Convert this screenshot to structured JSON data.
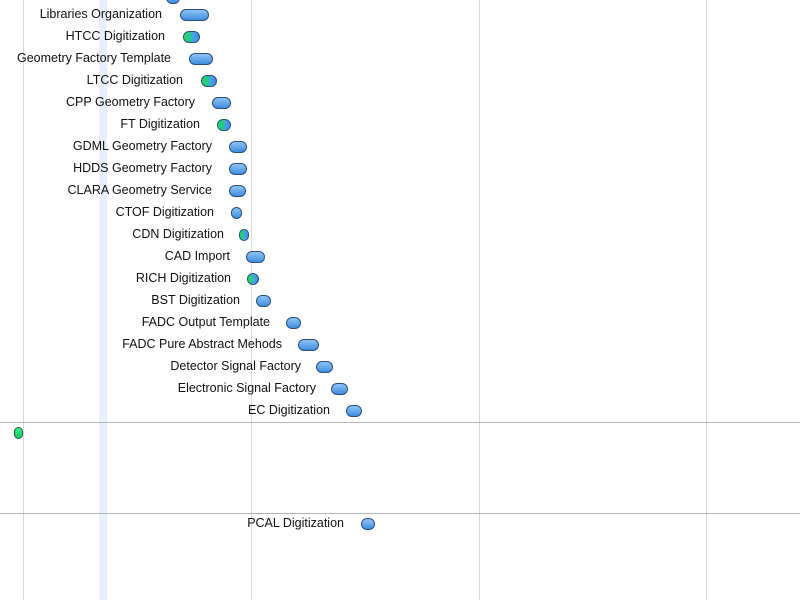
{
  "tasks": [
    {
      "id": "libraries-organization",
      "label": "Libraries Organization"
    },
    {
      "id": "htcc-digitization",
      "label": "HTCC Digitization"
    },
    {
      "id": "geometry-factory-template",
      "label": "Geometry Factory Template"
    },
    {
      "id": "ltcc-digitization",
      "label": "LTCC Digitization"
    },
    {
      "id": "cpp-geometry-factory",
      "label": "CPP Geometry Factory"
    },
    {
      "id": "ft-digitization",
      "label": "FT Digitization"
    },
    {
      "id": "gdml-geometry-factory",
      "label": "GDML Geometry Factory"
    },
    {
      "id": "hdds-geometry-factory",
      "label": "HDDS Geometry Factory"
    },
    {
      "id": "clara-geometry-service",
      "label": "CLARA Geometry Service"
    },
    {
      "id": "ctof-digitization",
      "label": "CTOF Digitization"
    },
    {
      "id": "cdn-digitization",
      "label": "CDN Digitization"
    },
    {
      "id": "cad-import",
      "label": "CAD Import"
    },
    {
      "id": "rich-digitization",
      "label": "RICH Digitization"
    },
    {
      "id": "bst-digitization",
      "label": "BST Digitization"
    },
    {
      "id": "fadc-output-template",
      "label": "FADC Output Template"
    },
    {
      "id": "fadc-pure-abstract-mehods",
      "label": "FADC Pure Abstract Mehods"
    },
    {
      "id": "detector-signal-factory",
      "label": "Detector Signal Factory"
    },
    {
      "id": "electronic-signal-factory",
      "label": "Electronic Signal Factory"
    },
    {
      "id": "ec-digitization",
      "label": "EC Digitization"
    },
    {
      "id": "pcal-digitization",
      "label": "PCAL Digitization"
    }
  ],
  "colors": {
    "bar": "#3f8ee0",
    "progress": "#27d865",
    "milestone": "#14c466"
  }
}
